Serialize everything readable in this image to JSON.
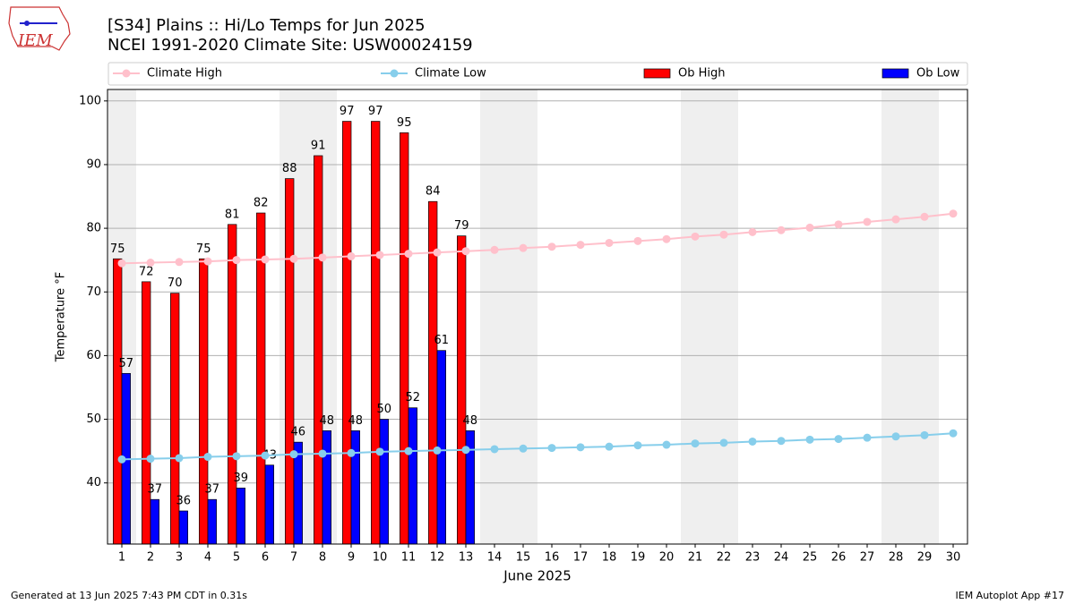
{
  "logo_text": "IEM",
  "footer_left": "Generated at 13 Jun 2025 7:43 PM CDT in 0.31s",
  "footer_right": "IEM Autoplot App #17",
  "chart_data": {
    "type": "bar",
    "title": "[S34] Plains :: Hi/Lo Temps for Jun 2025",
    "subtitle": "NCEI 1991-2020 Climate Site: USW00024159",
    "x_label": "June 2025",
    "y_label": "Temperature °F",
    "x": [
      1,
      2,
      3,
      4,
      5,
      6,
      7,
      8,
      9,
      10,
      11,
      12,
      13,
      14,
      15,
      16,
      17,
      18,
      19,
      20,
      21,
      22,
      23,
      24,
      25,
      26,
      27,
      28,
      29,
      30
    ],
    "xlim": [
      0.5,
      30.5
    ],
    "xticks": [
      1,
      2,
      3,
      4,
      5,
      6,
      7,
      8,
      9,
      10,
      11,
      12,
      13,
      14,
      15,
      16,
      17,
      18,
      19,
      20,
      21,
      22,
      23,
      24,
      25,
      26,
      27,
      28,
      29,
      30
    ],
    "ylim": [
      30.4,
      101.8
    ],
    "yticks": [
      40,
      50,
      60,
      70,
      80,
      90,
      100
    ],
    "grid": true,
    "shaded_days": [
      1,
      7,
      8,
      14,
      15,
      21,
      22,
      28,
      29
    ],
    "shade_color": "#efefef",
    "series": [
      {
        "name": "Climate High",
        "type": "line",
        "color": "#ffc0cb",
        "values": [
          74.5,
          74.6,
          74.7,
          74.8,
          75.0,
          75.1,
          75.2,
          75.4,
          75.6,
          75.8,
          76.0,
          76.2,
          76.4,
          76.6,
          76.9,
          77.1,
          77.4,
          77.7,
          78.0,
          78.3,
          78.7,
          79.0,
          79.4,
          79.7,
          80.1,
          80.6,
          81.0,
          81.4,
          81.8,
          82.3
        ]
      },
      {
        "name": "Climate Low",
        "type": "line",
        "color": "#87ceeb",
        "values": [
          43.7,
          43.8,
          43.9,
          44.1,
          44.2,
          44.3,
          44.5,
          44.6,
          44.7,
          44.9,
          45.0,
          45.1,
          45.2,
          45.3,
          45.4,
          45.5,
          45.6,
          45.7,
          45.9,
          46.0,
          46.2,
          46.3,
          46.5,
          46.6,
          46.8,
          46.9,
          47.1,
          47.3,
          47.5,
          47.8
        ]
      },
      {
        "name": "Ob High",
        "type": "bar",
        "color": "#ff0000",
        "values": [
          75.2,
          71.6,
          69.8,
          75.2,
          80.6,
          82.4,
          87.8,
          91.4,
          96.8,
          96.8,
          95.0,
          84.2,
          78.8,
          null,
          null,
          null,
          null,
          null,
          null,
          null,
          null,
          null,
          null,
          null,
          null,
          null,
          null,
          null,
          null,
          null
        ],
        "value_labels": [
          "75",
          "72",
          "70",
          "75",
          "81",
          "82",
          "88",
          "91",
          "97",
          "97",
          "95",
          "84",
          "79",
          null,
          null,
          null,
          null,
          null,
          null,
          null,
          null,
          null,
          null,
          null,
          null,
          null,
          null,
          null,
          null,
          null
        ]
      },
      {
        "name": "Ob Low",
        "type": "bar",
        "color": "#0000ff",
        "values": [
          57.2,
          37.4,
          35.6,
          37.4,
          39.2,
          42.8,
          46.4,
          48.2,
          48.2,
          50.0,
          51.8,
          60.8,
          48.2,
          null,
          null,
          null,
          null,
          null,
          null,
          null,
          null,
          null,
          null,
          null,
          null,
          null,
          null,
          null,
          null,
          null
        ],
        "value_labels": [
          "57",
          "37",
          "36",
          "37",
          "39",
          "43",
          "46",
          "48",
          "48",
          "50",
          "52",
          "61",
          "48",
          null,
          null,
          null,
          null,
          null,
          null,
          null,
          null,
          null,
          null,
          null,
          null,
          null,
          null,
          null,
          null,
          null
        ]
      }
    ]
  }
}
